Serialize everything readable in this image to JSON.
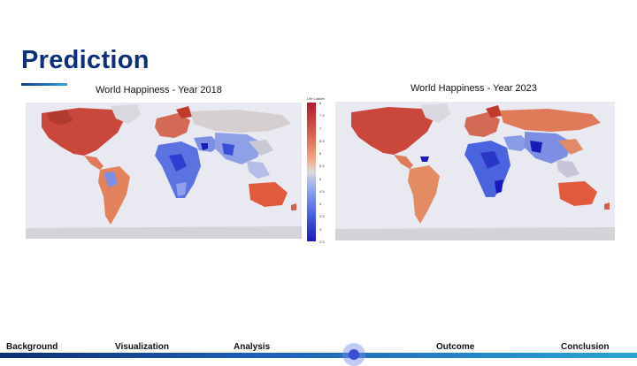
{
  "slide": {
    "title": "Prediction",
    "accent": "#0d2f7a"
  },
  "maps": [
    {
      "title": "World Happiness - Year 2018"
    },
    {
      "title": "World Happiness - Year 2023"
    }
  ],
  "legend": {
    "title": "Life Ladder",
    "ticks": [
      "8",
      "7.5",
      "7",
      "6.5",
      "6",
      "5.5",
      "5",
      "4.5",
      "4",
      "3.5",
      "3",
      "2.5"
    ],
    "colors": [
      "#b2182b",
      "#d6604d",
      "#f4a582",
      "#d9d9d9",
      "#92a8f0",
      "#4a64e0",
      "#1a1ab8"
    ]
  },
  "nav": {
    "items": [
      "Background",
      "Visualization",
      "Analysis",
      "Outcome",
      "Conclusion"
    ],
    "active_index": 2
  }
}
